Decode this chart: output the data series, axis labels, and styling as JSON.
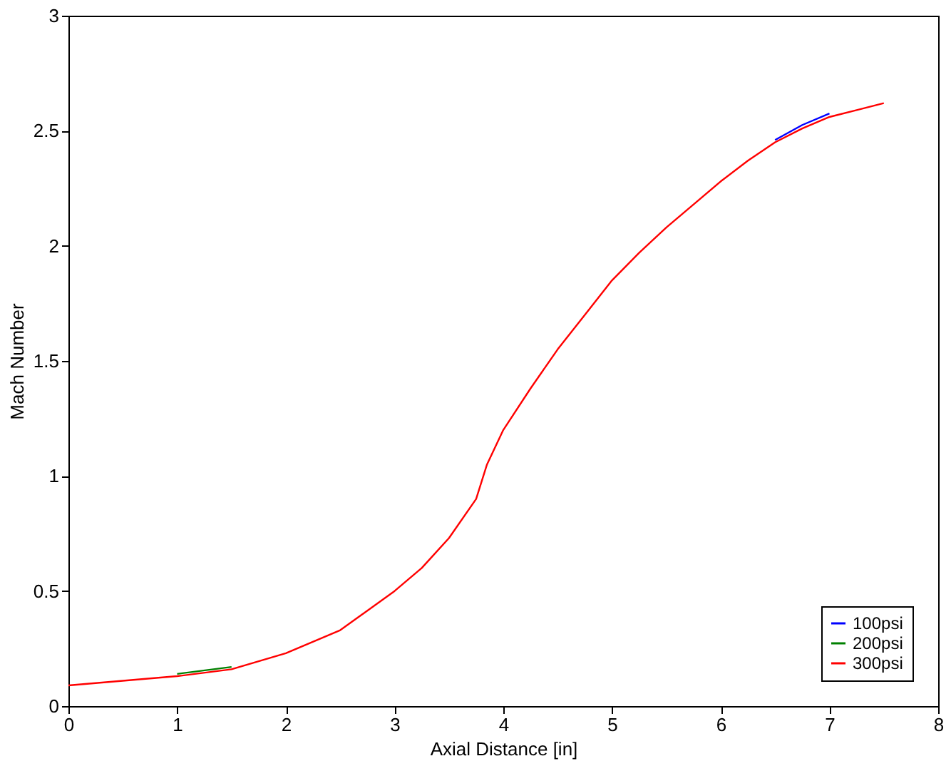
{
  "chart_data": {
    "type": "line",
    "xlabel": "Axial Distance [in]",
    "ylabel": "Mach Number",
    "xlim": [
      0,
      8
    ],
    "xticks": [
      0,
      1,
      2,
      3,
      4,
      5,
      6,
      7,
      8
    ],
    "ylim": [
      0,
      3
    ],
    "yticks": [
      0,
      0.5,
      1,
      1.5,
      2,
      2.5,
      3
    ],
    "x": [
      0,
      0.5,
      1,
      1.5,
      2,
      2.5,
      3,
      3.25,
      3.5,
      3.75,
      3.85,
      4,
      4.25,
      4.5,
      4.75,
      5,
      5.25,
      5.5,
      5.75,
      6,
      6.25,
      6.5,
      6.75,
      7,
      7.25,
      7.5
    ],
    "series": [
      {
        "name": "100psi",
        "color": "#0000ff",
        "values": [
          null,
          null,
          null,
          null,
          null,
          null,
          null,
          null,
          null,
          null,
          null,
          null,
          null,
          null,
          null,
          null,
          null,
          null,
          null,
          null,
          null,
          2.46,
          2.525,
          2.575,
          null,
          null
        ]
      },
      {
        "name": "200psi",
        "color": "#008000",
        "values": [
          null,
          null,
          0.14,
          0.17,
          null,
          null,
          null,
          null,
          null,
          null,
          null,
          null,
          null,
          null,
          null,
          null,
          null,
          null,
          null,
          null,
          null,
          null,
          null,
          null,
          null,
          null
        ]
      },
      {
        "name": "300psi",
        "color": "#ff0000",
        "values": [
          0.09,
          0.11,
          0.13,
          0.16,
          0.23,
          0.33,
          0.5,
          0.6,
          0.73,
          0.9,
          1.05,
          1.2,
          1.38,
          1.55,
          1.7,
          1.85,
          1.97,
          2.08,
          2.18,
          2.28,
          2.37,
          2.45,
          2.51,
          2.56,
          2.59,
          2.62
        ]
      }
    ],
    "legend": "bottom right",
    "grid": false,
    "line_style": "solid",
    "marker": "none"
  }
}
